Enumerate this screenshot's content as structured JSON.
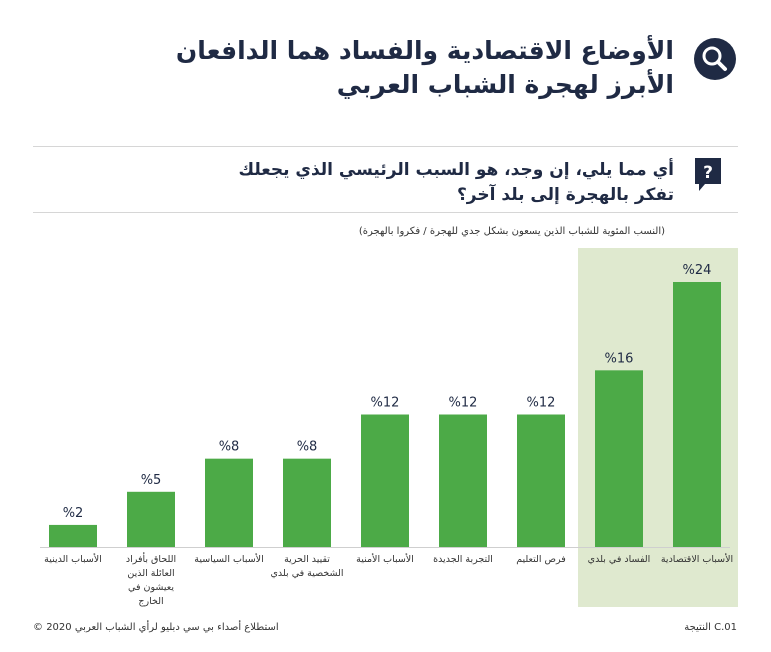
{
  "header": {
    "title_line1": "الأوضاع الاقتصادية والفساد هما الدافعان",
    "title_line2": "الأبرز لهجرة الشباب العربي",
    "search_icon": "search-icon"
  },
  "question": {
    "line1": "أي مما يلي، إن وجد، هو السبب الرئيسي الذي يجعلك",
    "line2": "تفكر بالهجرة إلى بلد آخر؟",
    "icon": "question-bubble-icon"
  },
  "note": "(النسب المئوية للشباب الذين يسعون بشكل جدي للهجرة / فكروا بالهجرة)",
  "footer": {
    "result": "النتيجة C.01",
    "source": "©  استطلاع أصداء بي سي دبليو لرأي الشباب العربي 2020"
  },
  "colors": {
    "bar": "#4caa47",
    "highlight_bg": "#dfe9cf",
    "navy": "#1f2a44"
  },
  "chart_data": {
    "type": "bar",
    "categories": [
      "الأسباب الاقتصادية",
      "الفساد في بلدي",
      "فرص التعليم",
      "التجربة الجديدة",
      "الأسباب الأمنية",
      "تقييد الحرية الشخصية في بلدي",
      "الأسباب السياسية",
      "اللحاق بأفراد العائلة الذين يعيشون في الخارج",
      "الأسباب الدينية"
    ],
    "values": [
      24,
      16,
      12,
      12,
      12,
      8,
      8,
      5,
      2
    ],
    "value_labels": [
      "%24",
      "%16",
      "%12",
      "%12",
      "%12",
      "%8",
      "%8",
      "%5",
      "%2"
    ],
    "highlighted": [
      0,
      1
    ],
    "ylim": [
      0,
      24
    ],
    "grid": false
  }
}
